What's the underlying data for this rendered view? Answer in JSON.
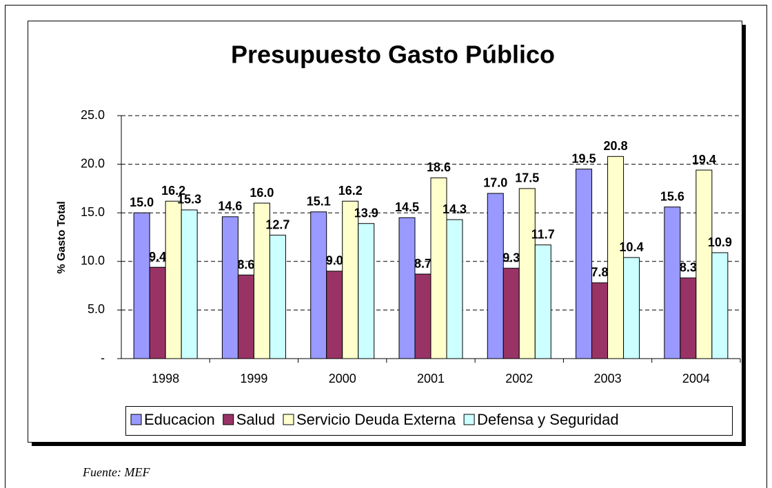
{
  "chart_data": {
    "type": "bar",
    "title": "Presupuesto Gasto Público",
    "y_label": "% Gasto Total",
    "categories": [
      "1998",
      "1999",
      "2000",
      "2001",
      "2002",
      "2003",
      "2004"
    ],
    "series": [
      {
        "name": "Educacion",
        "color": "#9999ff",
        "values": [
          15.0,
          14.6,
          15.1,
          14.5,
          17.0,
          19.5,
          15.6
        ],
        "value_labels": [
          "15.0",
          "14.6",
          "15.1",
          "14.5",
          "17.0",
          "19.5",
          "15.6"
        ]
      },
      {
        "name": "Salud",
        "color": "#993366",
        "values": [
          9.4,
          8.6,
          9.0,
          8.7,
          9.3,
          7.8,
          8.3
        ],
        "value_labels": [
          "9.4",
          "8.6",
          "9.0",
          "8.7",
          "9.3",
          "7.8",
          "8.3"
        ]
      },
      {
        "name": "Servicio Deuda Externa",
        "color": "#ffffcc",
        "values": [
          16.2,
          16.0,
          16.2,
          18.6,
          17.5,
          20.8,
          19.4
        ],
        "value_labels": [
          "16.2",
          "16.0",
          "16.2",
          "18.6",
          "17.5",
          "20.8",
          "19.4"
        ]
      },
      {
        "name": "Defensa y Seguridad",
        "color": "#ccffff",
        "values": [
          15.3,
          12.7,
          13.9,
          14.3,
          11.7,
          10.4,
          10.9
        ],
        "value_labels": [
          "15.3",
          "12.7",
          "13.9",
          "14.3",
          "11.7",
          "10.4",
          "10.9"
        ]
      }
    ],
    "ylim": [
      0,
      25
    ],
    "yticks": [
      {
        "value": 0,
        "label": "-"
      },
      {
        "value": 5,
        "label": "5.0"
      },
      {
        "value": 10,
        "label": "10.0"
      },
      {
        "value": 15,
        "label": "15.0"
      },
      {
        "value": 20,
        "label": "20.0"
      },
      {
        "value": 25,
        "label": "25.0"
      }
    ],
    "grid": true,
    "legend": "bottom"
  },
  "source": "Fuente:  MEF"
}
